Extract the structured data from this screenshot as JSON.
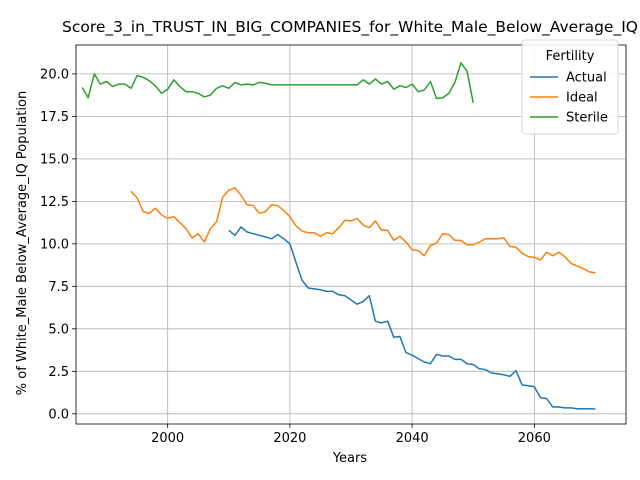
{
  "chart_data": {
    "type": "line",
    "title": "Score_3_in_TRUST_IN_BIG_COMPANIES_for_White_Male_Below_Average_IQ",
    "xlabel": "Years",
    "ylabel": "% of White_Male Below_Average_IQ Population",
    "xlim": [
      1985,
      2075
    ],
    "ylim": [
      -0.6,
      21.7
    ],
    "x_ticks": [
      2000,
      2020,
      2040,
      2060
    ],
    "x_tick_labels": [
      "2000",
      "2020",
      "2040",
      "2060"
    ],
    "y_ticks": [
      0,
      2.5,
      5,
      7.5,
      10,
      12.5,
      15,
      17.5,
      20
    ],
    "y_tick_labels": [
      "0.0",
      "2.5",
      "5.0",
      "7.5",
      "10.0",
      "12.5",
      "15.0",
      "17.5",
      "20.0"
    ],
    "grid": true,
    "legend": {
      "title": "Fertility",
      "placement": "top-right"
    },
    "series": [
      {
        "name": "Actual",
        "color": "#1f77b4",
        "x": [
          2010,
          2011,
          2012,
          2013,
          2014,
          2015,
          2016,
          2017,
          2018,
          2019,
          2020,
          2021,
          2022,
          2023,
          2024,
          2025,
          2026,
          2027,
          2028,
          2029,
          2030,
          2031,
          2032,
          2033,
          2034,
          2035,
          2036,
          2037,
          2038,
          2039,
          2040,
          2041,
          2042,
          2043,
          2044,
          2045,
          2046,
          2047,
          2048,
          2049,
          2050,
          2051,
          2052,
          2053,
          2054,
          2055,
          2056,
          2057,
          2058,
          2059,
          2060,
          2061,
          2062,
          2063,
          2064,
          2065,
          2066,
          2067,
          2068,
          2069,
          2070
        ],
        "values": [
          10.8,
          10.5,
          11.0,
          10.7,
          10.6,
          10.5,
          10.4,
          10.3,
          10.55,
          10.3,
          10.0,
          8.9,
          7.85,
          7.4,
          7.35,
          7.3,
          7.2,
          7.2,
          7.0,
          6.95,
          6.7,
          6.45,
          6.6,
          6.95,
          5.45,
          5.35,
          5.45,
          4.5,
          4.55,
          3.6,
          3.45,
          3.25,
          3.05,
          2.95,
          3.5,
          3.4,
          3.4,
          3.2,
          3.2,
          2.95,
          2.9,
          2.65,
          2.6,
          2.4,
          2.35,
          2.3,
          2.2,
          2.55,
          1.7,
          1.65,
          1.6,
          0.95,
          0.9,
          0.4,
          0.4,
          0.35,
          0.35,
          0.3,
          0.3,
          0.3,
          0.28
        ]
      },
      {
        "name": "Ideal",
        "color": "#ff7f0e",
        "x": [
          1994,
          1995,
          1996,
          1997,
          1998,
          1999,
          2000,
          2001,
          2002,
          2003,
          2004,
          2005,
          2006,
          2007,
          2008,
          2009,
          2010,
          2011,
          2012,
          2013,
          2014,
          2015,
          2016,
          2017,
          2018,
          2019,
          2020,
          2021,
          2022,
          2023,
          2024,
          2025,
          2026,
          2027,
          2028,
          2029,
          2030,
          2031,
          2032,
          2033,
          2034,
          2035,
          2036,
          2037,
          2038,
          2039,
          2040,
          2041,
          2042,
          2043,
          2044,
          2045,
          2046,
          2047,
          2048,
          2049,
          2050,
          2051,
          2052,
          2053,
          2054,
          2055,
          2056,
          2057,
          2058,
          2059,
          2060,
          2061,
          2062,
          2063,
          2064,
          2065,
          2066,
          2067,
          2068,
          2069,
          2070
        ],
        "values": [
          13.1,
          12.7,
          11.9,
          11.8,
          12.1,
          11.7,
          11.5,
          11.6,
          11.25,
          10.9,
          10.35,
          10.6,
          10.1,
          10.9,
          11.3,
          12.75,
          13.15,
          13.3,
          12.85,
          12.3,
          12.25,
          11.8,
          11.9,
          12.3,
          12.25,
          11.95,
          11.6,
          11.05,
          10.75,
          10.65,
          10.65,
          10.45,
          10.65,
          10.6,
          10.95,
          11.4,
          11.35,
          11.5,
          11.1,
          10.95,
          11.35,
          10.8,
          10.8,
          10.2,
          10.45,
          10.1,
          9.65,
          9.6,
          9.3,
          9.9,
          10.05,
          10.6,
          10.55,
          10.2,
          10.2,
          9.95,
          9.95,
          10.1,
          10.3,
          10.3,
          10.3,
          10.35,
          9.85,
          9.8,
          9.45,
          9.25,
          9.2,
          9.05,
          9.5,
          9.3,
          9.5,
          9.25,
          8.85,
          8.7,
          8.55,
          8.35,
          8.3
        ]
      },
      {
        "name": "Sterile",
        "color": "#2ca02c",
        "x": [
          1986,
          1987,
          1988,
          1989,
          1990,
          1991,
          1992,
          1993,
          1994,
          1995,
          1996,
          1997,
          1998,
          1999,
          2000,
          2001,
          2002,
          2003,
          2004,
          2005,
          2006,
          2007,
          2008,
          2009,
          2010,
          2011,
          2012,
          2013,
          2014,
          2015,
          2016,
          2017,
          2018,
          2019,
          2020,
          2021,
          2022,
          2023,
          2024,
          2025,
          2026,
          2027,
          2028,
          2029,
          2030,
          2031,
          2032,
          2033,
          2034,
          2035,
          2036,
          2037,
          2038,
          2039,
          2040,
          2041,
          2042,
          2043,
          2044,
          2045,
          2046,
          2047,
          2048,
          2049,
          2050
        ],
        "values": [
          19.2,
          18.6,
          20.0,
          19.4,
          19.55,
          19.25,
          19.4,
          19.4,
          19.15,
          19.9,
          19.8,
          19.6,
          19.3,
          18.85,
          19.1,
          19.65,
          19.25,
          18.95,
          18.95,
          18.85,
          18.65,
          18.75,
          19.15,
          19.3,
          19.15,
          19.5,
          19.35,
          19.4,
          19.35,
          19.5,
          19.45,
          19.35,
          19.35,
          19.35,
          19.35,
          19.35,
          19.35,
          19.35,
          19.35,
          19.35,
          19.35,
          19.35,
          19.35,
          19.35,
          19.35,
          19.35,
          19.65,
          19.4,
          19.7,
          19.4,
          19.55,
          19.1,
          19.3,
          19.2,
          19.4,
          18.95,
          19.05,
          19.55,
          18.55,
          18.6,
          18.85,
          19.5,
          20.65,
          20.15,
          18.3
        ]
      }
    ]
  }
}
